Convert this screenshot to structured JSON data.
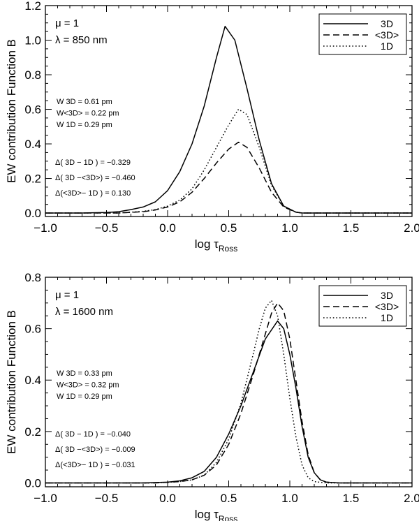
{
  "chart_data": [
    {
      "type": "line",
      "id": "top",
      "ylabel": "EW contribution Function B",
      "xlabel_main": "log τ",
      "xlabel_sub": "Ross",
      "xlim": [
        -1.0,
        2.0
      ],
      "ylim": [
        -0.02,
        1.2
      ],
      "xticks": [
        -1.0,
        -0.5,
        0.0,
        0.5,
        1.0,
        1.5,
        2.0
      ],
      "xtick_labels": [
        "−1.0",
        "−0.5",
        "0.0",
        "0.5",
        "1.0",
        "1.5",
        "2.0"
      ],
      "yticks": [
        0.0,
        0.2,
        0.4,
        0.6,
        0.8,
        1.0,
        1.2
      ],
      "ytick_labels": [
        "0.0",
        "0.2",
        "0.4",
        "0.6",
        "0.8",
        "1.0",
        "1.2"
      ],
      "mu_label": "μ = 1",
      "lambda_label": "λ = 850 nm",
      "w_lines": [
        "W 3D    =   0.61 pm",
        "W<3D> =   0.22 pm",
        "W 1D    =   0.29 pm"
      ],
      "delta_lines": [
        "Δ( 3D − 1D )  = −0.329",
        "Δ( 3D −<3D>) = −0.460",
        "Δ(<3D>− 1D ) =  0.130"
      ],
      "legend": [
        "3D",
        "<3D>",
        "1D"
      ],
      "series": [
        {
          "name": "3D",
          "style": "solid",
          "x": [
            -1.0,
            -0.7,
            -0.5,
            -0.4,
            -0.3,
            -0.2,
            -0.1,
            0.0,
            0.1,
            0.2,
            0.3,
            0.4,
            0.47,
            0.55,
            0.65,
            0.75,
            0.85,
            0.95,
            1.05,
            1.1,
            1.2,
            1.4,
            2.0
          ],
          "y": [
            0.0,
            0.0,
            0.003,
            0.008,
            0.02,
            0.035,
            0.065,
            0.13,
            0.24,
            0.4,
            0.62,
            0.9,
            1.08,
            1.0,
            0.72,
            0.42,
            0.17,
            0.04,
            0.005,
            0.0,
            0.0,
            0.0,
            0.0
          ]
        },
        {
          "name": "<3D>",
          "style": "dashed",
          "x": [
            -1.0,
            -0.4,
            -0.2,
            -0.1,
            0.0,
            0.1,
            0.2,
            0.3,
            0.4,
            0.5,
            0.58,
            0.65,
            0.75,
            0.85,
            0.95,
            1.05,
            1.1,
            1.2,
            2.0
          ],
          "y": [
            0.0,
            0.0,
            0.008,
            0.018,
            0.035,
            0.065,
            0.12,
            0.2,
            0.29,
            0.37,
            0.41,
            0.38,
            0.26,
            0.12,
            0.035,
            0.005,
            0.0,
            0.0,
            0.0
          ]
        },
        {
          "name": "1D",
          "style": "dotted",
          "x": [
            -1.0,
            -0.4,
            -0.2,
            -0.1,
            0.0,
            0.1,
            0.2,
            0.3,
            0.4,
            0.5,
            0.58,
            0.65,
            0.75,
            0.85,
            0.95,
            1.05,
            1.1,
            1.2,
            2.0
          ],
          "y": [
            0.0,
            0.0,
            0.01,
            0.02,
            0.04,
            0.075,
            0.14,
            0.25,
            0.38,
            0.51,
            0.6,
            0.57,
            0.38,
            0.16,
            0.04,
            0.005,
            0.0,
            0.0,
            0.0
          ]
        }
      ]
    },
    {
      "type": "line",
      "id": "bottom",
      "ylabel": "EW contribution Function B",
      "xlabel_main": "log τ",
      "xlabel_sub": "Ross",
      "xlim": [
        -1.0,
        2.0
      ],
      "ylim": [
        -0.015,
        0.8
      ],
      "xticks": [
        -1.0,
        -0.5,
        0.0,
        0.5,
        1.0,
        1.5,
        2.0
      ],
      "xtick_labels": [
        "−1.0",
        "−0.5",
        "0.0",
        "0.5",
        "1.0",
        "1.5",
        "2.0"
      ],
      "yticks": [
        0.0,
        0.2,
        0.4,
        0.6,
        0.8
      ],
      "ytick_labels": [
        "0.0",
        "0.2",
        "0.4",
        "0.6",
        "0.8"
      ],
      "mu_label": "μ = 1",
      "lambda_label": "λ = 1600 nm",
      "w_lines": [
        "W 3D    =   0.33 pm",
        "W<3D> =   0.32 pm",
        "W 1D    =   0.29 pm"
      ],
      "delta_lines": [
        "Δ( 3D − 1D )  = −0.040",
        "Δ( 3D −<3D>) = −0.009",
        "Δ(<3D>− 1D ) = −0.031"
      ],
      "legend": [
        "3D",
        "<3D>",
        "1D"
      ],
      "series": [
        {
          "name": "3D",
          "style": "solid",
          "x": [
            -1.0,
            -0.2,
            0.0,
            0.1,
            0.2,
            0.3,
            0.4,
            0.5,
            0.6,
            0.7,
            0.8,
            0.9,
            0.95,
            1.0,
            1.05,
            1.1,
            1.15,
            1.2,
            1.25,
            1.3,
            1.4,
            2.0
          ],
          "y": [
            0.0,
            0.0,
            0.003,
            0.008,
            0.02,
            0.045,
            0.1,
            0.19,
            0.3,
            0.43,
            0.56,
            0.63,
            0.6,
            0.5,
            0.37,
            0.22,
            0.1,
            0.04,
            0.012,
            0.003,
            0.0,
            0.0
          ]
        },
        {
          "name": "<3D>",
          "style": "dashed",
          "x": [
            -1.0,
            -0.1,
            0.1,
            0.2,
            0.3,
            0.4,
            0.5,
            0.6,
            0.7,
            0.8,
            0.85,
            0.9,
            0.95,
            1.0,
            1.05,
            1.1,
            1.15,
            1.2,
            1.25,
            1.3,
            1.4,
            2.0
          ],
          "y": [
            0.0,
            0.0,
            0.005,
            0.012,
            0.03,
            0.07,
            0.15,
            0.27,
            0.42,
            0.58,
            0.66,
            0.7,
            0.67,
            0.56,
            0.4,
            0.24,
            0.11,
            0.04,
            0.012,
            0.003,
            0.0,
            0.0
          ]
        },
        {
          "name": "1D",
          "style": "dotted",
          "x": [
            -1.0,
            -0.1,
            0.1,
            0.2,
            0.3,
            0.4,
            0.5,
            0.6,
            0.7,
            0.75,
            0.8,
            0.85,
            0.9,
            0.95,
            1.0,
            1.05,
            1.1,
            1.15,
            1.2,
            1.3,
            2.0
          ],
          "y": [
            0.0,
            0.0,
            0.005,
            0.012,
            0.03,
            0.08,
            0.17,
            0.31,
            0.5,
            0.6,
            0.68,
            0.71,
            0.65,
            0.5,
            0.33,
            0.18,
            0.07,
            0.02,
            0.005,
            0.0,
            0.0
          ]
        }
      ]
    }
  ]
}
